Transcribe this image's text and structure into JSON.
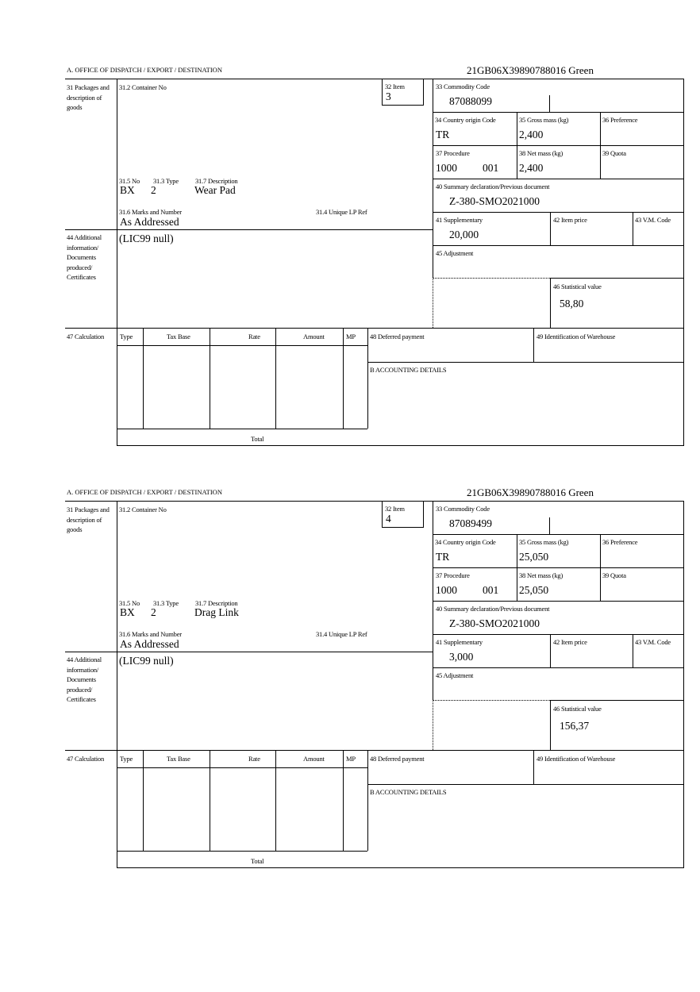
{
  "labels": {
    "office": "A.  OFFICE OF DISPATCH / EXPORT / DESTINATION",
    "packages": "31 Packages and description of goods",
    "container_no": "31.2 Container No",
    "item": "32 Item",
    "no": "31.5 No",
    "type": "31.3 Type",
    "description": "31.7 Description",
    "marks": "31.6 Marks and Number",
    "unique_lp_ref": "31.4 Unique LP Ref",
    "additional_info": "44 Additional information/ Documents produced/ Certificates",
    "calculation": "47 Calculation",
    "calc_type": "Type",
    "tax_base": "Tax Base",
    "rate": "Rate",
    "amount": "Amount",
    "mp": "MP",
    "total": "Total",
    "deferred_payment": "48 Deferred payment",
    "warehouse": "49 Identification of Warehouse",
    "accounting": "B ACCOUNTING DETAILS",
    "commodity_code": "33 Commodity Code",
    "country_origin": "34 Country origin Code",
    "gross_mass": "35 Gross mass (kg)",
    "preference": "36 Preference",
    "procedure": "37 Procedure",
    "net_mass": "38 Net mass (kg)",
    "quota": "39 Quota",
    "summary_declaration": "40 Summary declaration/Previous document",
    "supplementary": "41 Supplementary",
    "item_price": "42 Item price",
    "vm_code": "43 V.M. Code",
    "adjustment": "45 Adjustment",
    "statistical_value": "46 Statistical value"
  },
  "items": [
    {
      "reference": "21GB06X39890788016    Green",
      "item_no": "3",
      "pkg_kind": "BX",
      "pkg_count": "2",
      "description": "Wear Pad",
      "marks": "As Addressed",
      "additional_info": "(LIC99 null)",
      "commodity_code": "87088099",
      "country_origin": "TR",
      "gross_mass": "2,400",
      "procedure": "1000",
      "procedure_add": "001",
      "net_mass": "2,400",
      "summary_declaration": "Z-380-SMO2021000",
      "supplementary": "20,000",
      "statistical_value": "58,80"
    },
    {
      "reference": "21GB06X39890788016    Green",
      "item_no": "4",
      "pkg_kind": "BX",
      "pkg_count": "2",
      "description": "Drag Link",
      "marks": "As Addressed",
      "additional_info": "(LIC99 null)",
      "commodity_code": "87089499",
      "country_origin": "TR",
      "gross_mass": "25,050",
      "procedure": "1000",
      "procedure_add": "001",
      "net_mass": "25,050",
      "summary_declaration": "Z-380-SMO2021000",
      "supplementary": "3,000",
      "statistical_value": "156,37"
    }
  ]
}
